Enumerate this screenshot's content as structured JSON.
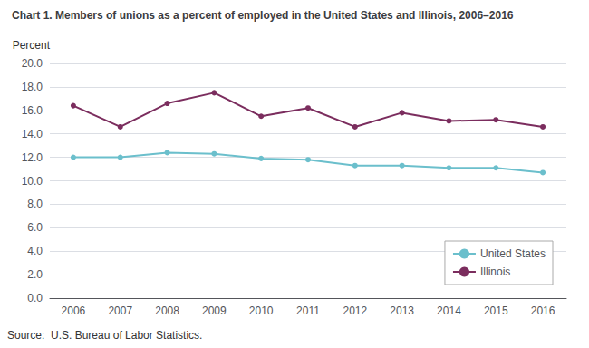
{
  "chart_data": {
    "type": "line",
    "title": "Chart 1. Members of unions as a percent of employed in the United States and Illinois, 2006–2016",
    "ylabel": "Percent",
    "source": "Source:  U.S. Bureau of Labor Statistics.",
    "categories": [
      "2006",
      "2007",
      "2008",
      "2009",
      "2010",
      "2011",
      "2012",
      "2013",
      "2014",
      "2015",
      "2016"
    ],
    "series": [
      {
        "name": "United States",
        "color": "#6BBFCC",
        "marker": "circle",
        "values": [
          12.0,
          12.0,
          12.4,
          12.3,
          11.9,
          11.8,
          11.3,
          11.3,
          11.1,
          11.1,
          10.7
        ]
      },
      {
        "name": "Illinois",
        "color": "#7B2D5E",
        "marker": "circle",
        "values": [
          16.4,
          14.6,
          16.6,
          17.5,
          15.5,
          16.2,
          14.6,
          15.8,
          15.1,
          15.2,
          14.6
        ]
      }
    ],
    "ylim": [
      0,
      20
    ],
    "yticks": [
      {
        "value": 0,
        "label": "0.0"
      },
      {
        "value": 2,
        "label": "2.0"
      },
      {
        "value": 4,
        "label": "4.0"
      },
      {
        "value": 6,
        "label": "6.0"
      },
      {
        "value": 8,
        "label": "8.0"
      },
      {
        "value": 10,
        "label": "10.0"
      },
      {
        "value": 12,
        "label": "12.0"
      },
      {
        "value": 14,
        "label": "14.0"
      },
      {
        "value": 16,
        "label": "16.0"
      },
      {
        "value": 18,
        "label": "18.0"
      },
      {
        "value": 20,
        "label": "20.0"
      }
    ],
    "grid": true,
    "legend": "lower right"
  }
}
